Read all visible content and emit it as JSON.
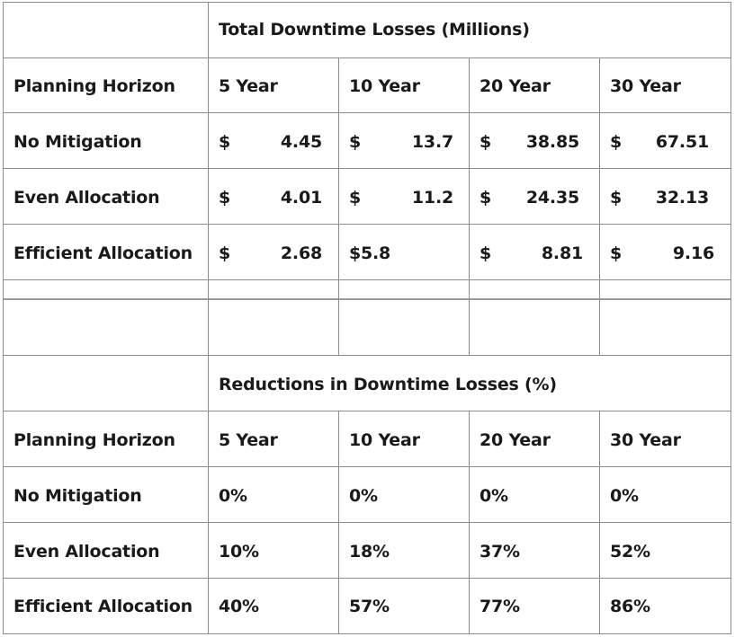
{
  "total_section": {
    "title": "Total Downtime Losses (Millions)",
    "header_label": "Planning Horizon",
    "columns": [
      "5 Year",
      "10 Year",
      "20 Year",
      "30 Year"
    ],
    "rows": [
      {
        "label": "No Mitigation",
        "cells": [
          {
            "sym": "$",
            "val": "4.45"
          },
          {
            "sym": "$",
            "val": "13.7"
          },
          {
            "sym": "$",
            "val": "38.85"
          },
          {
            "sym": "$",
            "val": "67.51"
          }
        ]
      },
      {
        "label": "Even Allocation",
        "cells": [
          {
            "sym": "$",
            "val": "4.01"
          },
          {
            "sym": "$",
            "val": "11.2"
          },
          {
            "sym": "$",
            "val": "24.35"
          },
          {
            "sym": "$",
            "val": "32.13"
          }
        ]
      },
      {
        "label": "Efficient Allocation",
        "cells": [
          {
            "sym": "$",
            "val": "2.68"
          },
          {
            "sym": "$5.8",
            "val": ""
          },
          {
            "sym": "$",
            "val": "8.81"
          },
          {
            "sym": "$",
            "val": "9.16"
          }
        ]
      }
    ]
  },
  "reduction_section": {
    "title": "Reductions in Downtime Losses (%)",
    "header_label": "Planning Horizon",
    "columns": [
      "5 Year",
      "10 Year",
      "20 Year",
      "30 Year"
    ],
    "rows": [
      {
        "label": "No Mitigation",
        "cells": [
          "0%",
          "0%",
          "0%",
          "0%"
        ]
      },
      {
        "label": "Even Allocation",
        "cells": [
          "10%",
          "18%",
          "37%",
          "52%"
        ]
      },
      {
        "label": "Efficient Allocation",
        "cells": [
          "40%",
          "57%",
          "77%",
          "86%"
        ]
      }
    ]
  }
}
